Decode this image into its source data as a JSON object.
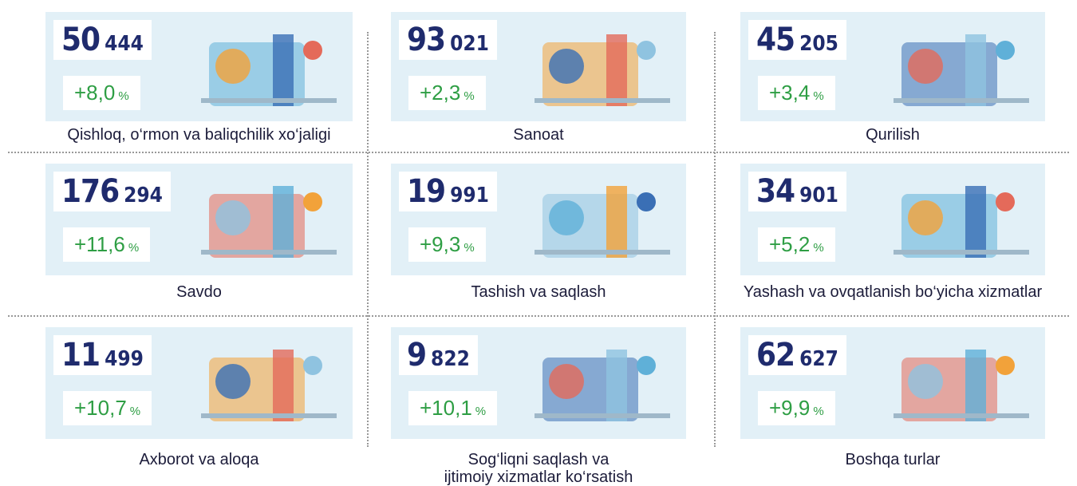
{
  "cards": [
    {
      "count": [
        "50",
        "444"
      ],
      "change": "+8,0",
      "unit": "%",
      "label": [
        "Qishloq, o‘rmon va baliqchilik xo‘jaligi"
      ]
    },
    {
      "count": [
        "93",
        "021"
      ],
      "change": "+2,3",
      "unit": "%",
      "label": [
        "Sanoat"
      ]
    },
    {
      "count": [
        "45",
        "205"
      ],
      "change": "+3,4",
      "unit": "%",
      "label": [
        "Qurilish"
      ]
    },
    {
      "count": [
        "176",
        "294"
      ],
      "change": "+11,6",
      "unit": "%",
      "label": [
        "Savdo"
      ]
    },
    {
      "count": [
        "19",
        "991"
      ],
      "change": "+9,3",
      "unit": "%",
      "label": [
        "Tashish va saqlash"
      ]
    },
    {
      "count": [
        "34",
        "901"
      ],
      "change": "+5,2",
      "unit": "%",
      "label": [
        "Yashash va  ovqatlanish bo‘yicha xizmatlar"
      ]
    },
    {
      "count": [
        "11",
        "499"
      ],
      "change": "+10,7",
      "unit": "%",
      "label": [
        "Axborot va aloqa"
      ]
    },
    {
      "count": [
        "9",
        "822"
      ],
      "change": "+10,1",
      "unit": "%",
      "label": [
        "Sog‘liqni saqlash va",
        "ijtimoiy xizmatlar ko‘rsatish"
      ]
    },
    {
      "count": [
        "62",
        "627"
      ],
      "change": "+9,9",
      "unit": "%",
      "label": [
        "Boshqa turlar"
      ]
    }
  ]
}
